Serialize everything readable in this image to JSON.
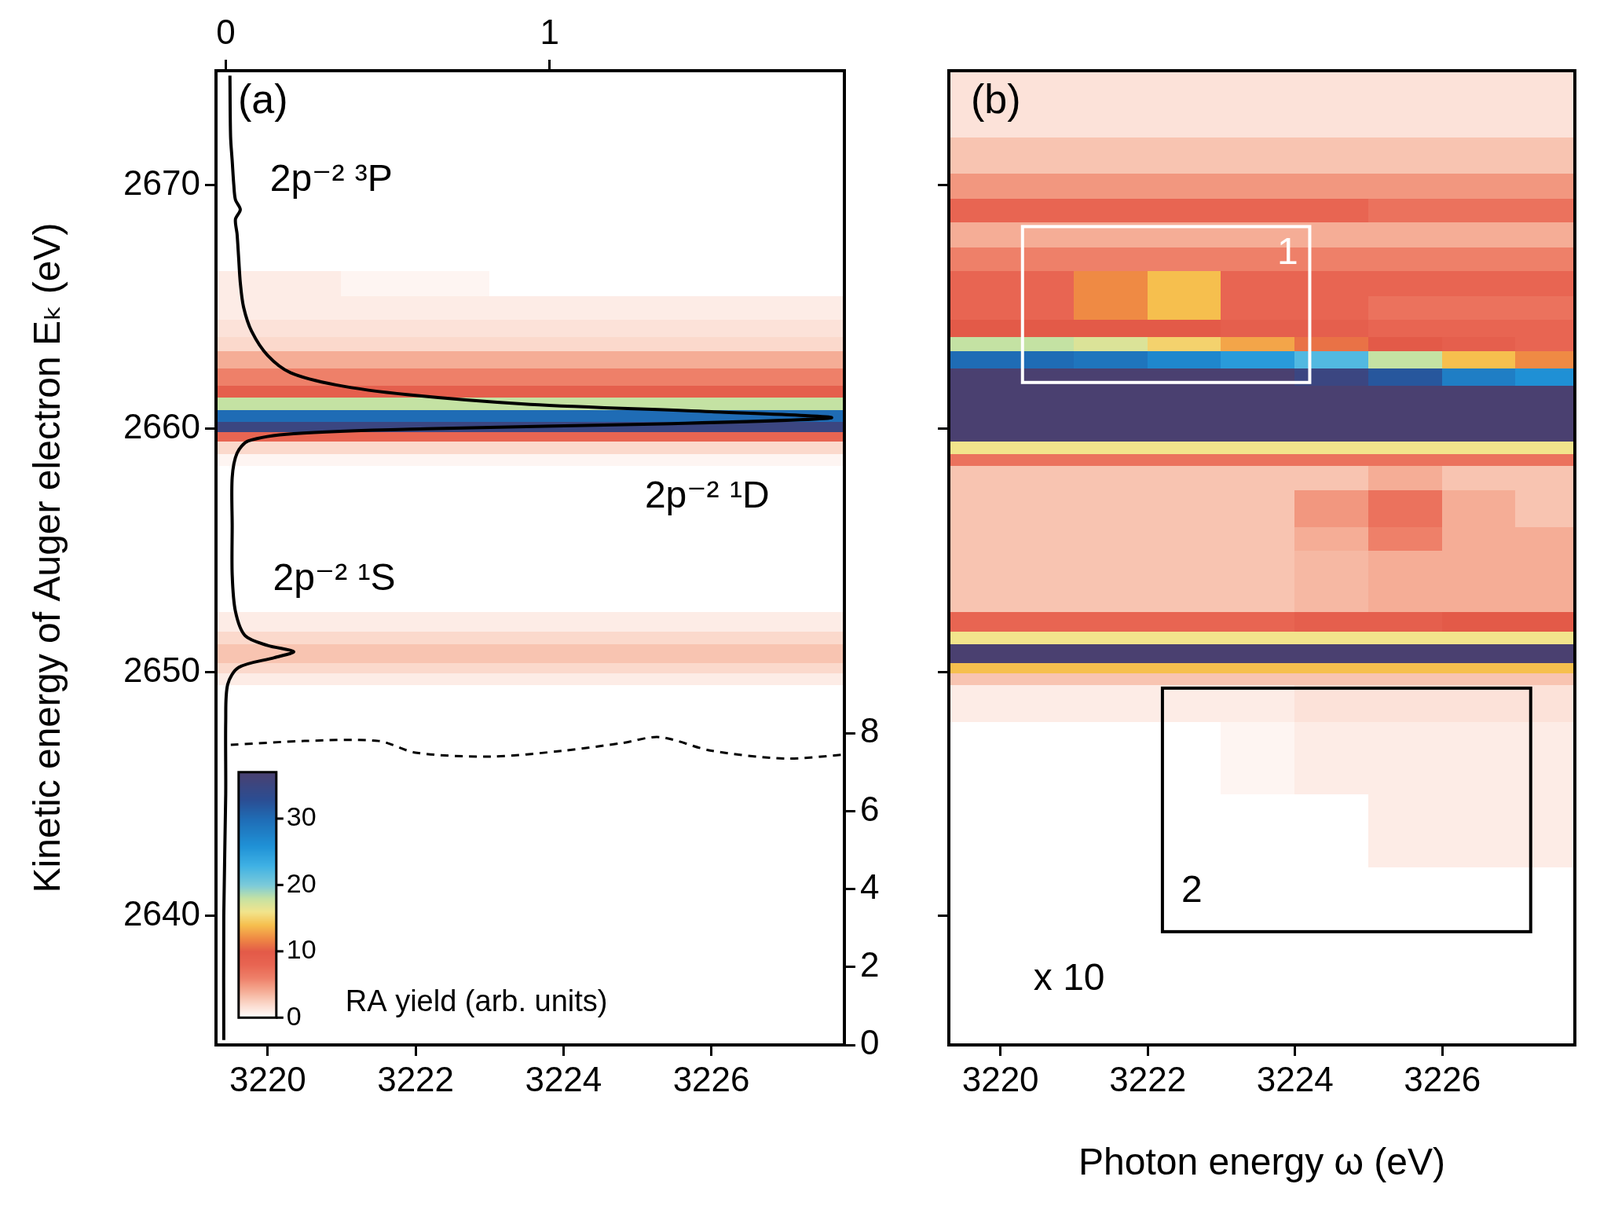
{
  "chart_data": [
    {
      "type": "heatmap",
      "label": "(a)",
      "y_label": "Kinetic energy of Auger electron Eₖ (eV)",
      "xlim": [
        3219.3,
        3227.8
      ],
      "xticks": [
        3220,
        3222,
        3224,
        3226
      ],
      "ylim": [
        2634.7,
        2674.7
      ],
      "yticks": [
        2640,
        2650,
        2660,
        2670
      ],
      "x2lim": [
        -0.03,
        1.91
      ],
      "x2ticks": [
        0,
        1
      ],
      "y2lim": [
        0,
        25
      ],
      "y2ticks": [
        0,
        2,
        4,
        6,
        8
      ],
      "grid": false,
      "x_edges": [
        3219.3,
        3220,
        3221,
        3222,
        3223,
        3224,
        3225,
        3226,
        3227,
        3227.8
      ],
      "y_edges": [
        2634.7,
        2642,
        2645,
        2648,
        2649.5,
        2650.0,
        2650.4,
        2651.2,
        2651.7,
        2652.5,
        2655,
        2656,
        2657.5,
        2658.5,
        2659.0,
        2659.5,
        2659.9,
        2660.3,
        2660.8,
        2661.3,
        2661.8,
        2662.5,
        2663.2,
        2663.8,
        2664.5,
        2665.5,
        2666.5,
        2667.5,
        2668.5,
        2669.5,
        2670.5,
        2672,
        2674.7
      ],
      "z": [
        [
          0,
          0,
          0,
          0,
          0,
          0,
          0,
          0,
          0
        ],
        [
          0,
          0,
          0,
          0,
          0,
          0,
          0,
          0,
          0
        ],
        [
          0,
          0,
          0,
          0,
          0,
          0,
          0,
          0,
          0
        ],
        [
          0,
          0,
          0,
          0,
          0,
          0,
          0,
          0,
          0
        ],
        [
          1,
          1,
          1,
          1,
          1,
          1,
          1,
          1,
          1
        ],
        [
          2,
          2,
          2,
          2,
          2,
          2,
          2,
          2,
          2
        ],
        [
          3,
          3,
          3,
          3,
          3,
          3,
          3,
          3,
          3
        ],
        [
          2,
          2,
          2,
          2,
          2,
          2,
          2,
          2,
          2
        ],
        [
          1,
          1,
          1,
          1,
          1,
          1,
          1,
          1,
          1
        ],
        [
          0,
          0,
          0,
          0,
          0,
          0,
          0,
          0,
          0
        ],
        [
          0,
          0,
          0,
          0,
          0,
          0,
          0,
          0,
          0
        ],
        [
          0,
          0,
          0,
          0,
          0,
          0,
          0,
          0,
          0
        ],
        [
          0,
          0,
          0,
          0,
          0,
          0,
          0,
          0,
          0
        ],
        [
          0.5,
          0.5,
          0.5,
          0.5,
          0.5,
          0.5,
          0.5,
          0.5,
          0.5
        ],
        [
          2,
          2,
          2,
          2,
          2,
          2,
          2,
          2,
          2
        ],
        [
          8,
          8,
          8,
          8,
          8,
          8,
          8,
          8,
          8
        ],
        [
          35,
          35,
          35,
          35,
          35,
          35,
          35,
          35,
          35
        ],
        [
          30,
          30,
          30,
          30,
          30,
          30,
          30,
          30,
          30
        ],
        [
          18,
          18,
          18,
          18,
          18,
          18,
          18,
          18,
          18
        ],
        [
          9,
          9,
          9,
          9,
          9,
          9,
          9,
          9,
          9
        ],
        [
          6,
          6,
          6,
          6,
          6,
          6,
          6,
          6,
          6
        ],
        [
          4,
          4,
          4,
          4,
          4,
          4,
          4,
          4,
          4
        ],
        [
          2,
          2,
          2,
          2,
          2,
          2,
          2,
          2,
          2
        ],
        [
          1.5,
          1.5,
          1.5,
          1.5,
          1.5,
          1.5,
          1.5,
          1.5,
          1.5
        ],
        [
          1,
          1,
          1,
          1,
          1,
          1,
          1,
          1,
          1
        ],
        [
          1,
          1,
          0.5,
          0.5,
          0,
          0,
          0,
          0,
          0
        ],
        [
          0,
          0,
          0,
          0,
          0,
          0,
          0,
          0,
          0
        ],
        [
          0,
          0,
          0,
          0,
          0,
          0,
          0,
          0,
          0
        ],
        [
          0,
          0,
          0,
          0,
          0,
          0,
          0,
          0,
          0
        ],
        [
          0,
          0,
          0,
          0,
          0,
          0,
          0,
          0,
          0
        ],
        [
          0,
          0,
          0,
          0,
          0,
          0,
          0,
          0,
          0
        ],
        [
          0,
          0,
          0,
          0,
          0,
          0,
          0,
          0,
          0
        ]
      ],
      "colorbar": {
        "label": "RA yield (arb. units)",
        "range": [
          0,
          37
        ],
        "ticks": [
          0,
          10,
          20,
          30
        ]
      },
      "series": [
        {
          "axis": "x2",
          "color": "#000000",
          "line_style": "solid",
          "x": [
            -0.006,
            -0.006,
            0,
            0,
            0.006,
            0.04,
            0.15,
            0.21,
            0.13,
            0.06,
            0.03,
            0.02,
            0.02,
            0.02,
            0.035,
            0.07,
            0.21,
            0.62,
            1.35,
            1.87,
            1.5,
            0.94,
            0.56,
            0.34,
            0.2,
            0.13,
            0.08,
            0.055,
            0.045,
            0.04,
            0.035,
            0.03,
            0.045,
            0.03,
            0.025,
            0.02,
            0.015,
            0.013
          ],
          "y": [
            2634.9,
            2640,
            2645,
            2648,
            2649.5,
            2650.2,
            2650.6,
            2650.85,
            2651.1,
            2651.5,
            2652.5,
            2654,
            2656,
            2658,
            2659,
            2659.5,
            2659.8,
            2660.0,
            2660.2,
            2660.45,
            2660.7,
            2661.0,
            2661.4,
            2661.8,
            2662.3,
            2663,
            2664,
            2665,
            2666,
            2667,
            2668,
            2668.6,
            2669.0,
            2669.4,
            2670,
            2671,
            2672,
            2674.5
          ]
        },
        {
          "axis": "y2",
          "color": "#000000",
          "line_style": "dashed",
          "x": [
            3219.5,
            3220.5,
            3221.5,
            3222,
            3223,
            3224,
            3224.8,
            3225.3,
            3226,
            3227,
            3227.8
          ],
          "y": [
            7.7,
            7.8,
            7.8,
            7.5,
            7.4,
            7.55,
            7.75,
            7.9,
            7.55,
            7.35,
            7.45
          ]
        }
      ],
      "annotations": [
        {
          "text": "2p⁻² ³P",
          "x": 3220.03,
          "y": 2670.2
        },
        {
          "text": "2p⁻² ¹D",
          "x": 3225.1,
          "y": 2657.2
        },
        {
          "text": "2p⁻² ¹S",
          "x": 3220.07,
          "y": 2653.8
        }
      ]
    },
    {
      "type": "heatmap",
      "label": "(b)",
      "x_label": "Photon energy ω (eV)",
      "xlim": [
        3219.3,
        3227.8
      ],
      "xticks": [
        3220,
        3222,
        3224,
        3226
      ],
      "ylim": [
        2634.7,
        2674.7
      ],
      "yticks": [
        2640,
        2650,
        2660,
        2670
      ],
      "tick_labels": "x",
      "grid": false,
      "x_edges": [
        3219.3,
        3220,
        3221,
        3222,
        3223,
        3224,
        3225,
        3226,
        3227,
        3227.8
      ],
      "y_edges": [
        2634.7,
        2642,
        2645,
        2648,
        2649.5,
        2650.0,
        2650.4,
        2651.2,
        2651.7,
        2652.5,
        2655,
        2656,
        2657.5,
        2658.5,
        2659.0,
        2659.5,
        2659.9,
        2660.3,
        2660.8,
        2661.3,
        2661.8,
        2662.5,
        2663.2,
        2663.8,
        2664.5,
        2665.5,
        2666.5,
        2667.5,
        2668.5,
        2669.5,
        2670.5,
        2672,
        2674.7
      ],
      "z": [
        [
          0,
          0,
          0,
          0,
          0,
          0,
          0,
          0,
          0
        ],
        [
          0,
          0,
          0,
          0,
          0,
          0,
          1,
          1,
          1
        ],
        [
          0,
          0,
          0,
          0,
          0.5,
          1,
          1,
          1,
          1
        ],
        [
          1,
          1,
          1,
          1,
          1,
          1.5,
          1.5,
          1.5,
          1.5
        ],
        [
          3,
          3,
          3,
          3,
          3,
          3,
          3,
          3,
          3
        ],
        [
          14,
          14,
          14,
          14,
          14,
          14,
          14,
          14,
          14
        ],
        [
          37,
          37,
          37,
          37,
          37,
          37,
          37,
          37,
          37
        ],
        [
          16,
          16,
          16,
          16,
          16,
          16,
          16,
          16,
          16
        ],
        [
          8,
          8,
          8,
          8,
          8,
          9,
          9,
          10,
          10
        ],
        [
          3,
          3,
          3,
          3,
          3,
          3.5,
          4,
          4,
          4
        ],
        [
          3,
          3,
          3,
          3,
          3,
          4,
          6,
          4,
          4
        ],
        [
          3,
          3,
          3,
          3,
          3,
          5,
          7,
          4,
          3
        ],
        [
          3,
          3,
          3,
          3,
          3,
          3,
          4,
          3,
          3
        ],
        [
          7,
          7,
          7,
          7,
          7,
          7,
          7,
          7,
          7
        ],
        [
          16,
          16,
          16,
          16,
          16,
          16,
          16,
          16,
          16
        ],
        [
          37,
          37,
          37,
          37,
          37,
          37,
          37,
          37,
          37
        ],
        [
          37,
          37,
          37,
          37,
          37,
          37,
          37,
          37,
          37
        ],
        [
          37,
          37,
          37,
          37,
          37,
          37,
          37,
          37,
          37
        ],
        [
          37,
          37,
          37,
          37,
          37,
          37,
          37,
          37,
          37
        ],
        [
          37,
          37,
          37,
          37,
          37,
          37,
          37,
          37,
          37
        ],
        [
          37,
          37,
          37,
          37,
          37,
          35,
          32,
          28,
          26
        ],
        [
          30,
          30,
          29,
          27,
          25,
          22,
          18,
          14,
          12
        ],
        [
          18,
          18,
          17,
          15,
          13,
          11,
          10,
          9,
          8
        ],
        [
          10,
          10,
          10,
          10,
          9,
          9,
          8,
          8,
          8
        ],
        [
          8,
          8,
          12,
          14,
          8,
          8,
          7,
          7,
          7
        ],
        [
          8,
          8,
          12,
          14,
          8,
          8,
          8,
          8,
          8
        ],
        [
          6,
          6,
          6,
          6,
          6,
          6,
          6,
          6,
          6
        ],
        [
          4,
          4,
          4,
          4,
          4,
          4,
          4,
          4,
          4
        ],
        [
          8,
          8,
          8,
          8,
          8,
          8,
          7,
          7,
          7
        ],
        [
          5,
          5,
          5,
          5,
          5,
          5,
          5,
          5,
          5
        ],
        [
          3,
          3,
          3,
          3,
          3,
          3,
          3,
          3,
          3
        ],
        [
          1.5,
          1.5,
          1.5,
          1.5,
          1.5,
          1.5,
          1.5,
          1.5,
          1.5
        ]
      ],
      "boxes": [
        {
          "x": [
            3220.3,
            3224.2
          ],
          "y": [
            2661.9,
            2668.3
          ],
          "color": "#ffffff",
          "label": {
            "text": "1",
            "x": 3223.9,
            "y": 2667.2
          }
        },
        {
          "x": [
            3222.2,
            3227.2
          ],
          "y": [
            2639.35,
            2649.35
          ],
          "color": "#000000",
          "label": {
            "text": "2",
            "x": 3222.6,
            "y": 2641.0
          }
        }
      ],
      "annotations": [
        {
          "text": "x 10",
          "x": 3220.45,
          "y": 2637.4
        }
      ]
    }
  ]
}
